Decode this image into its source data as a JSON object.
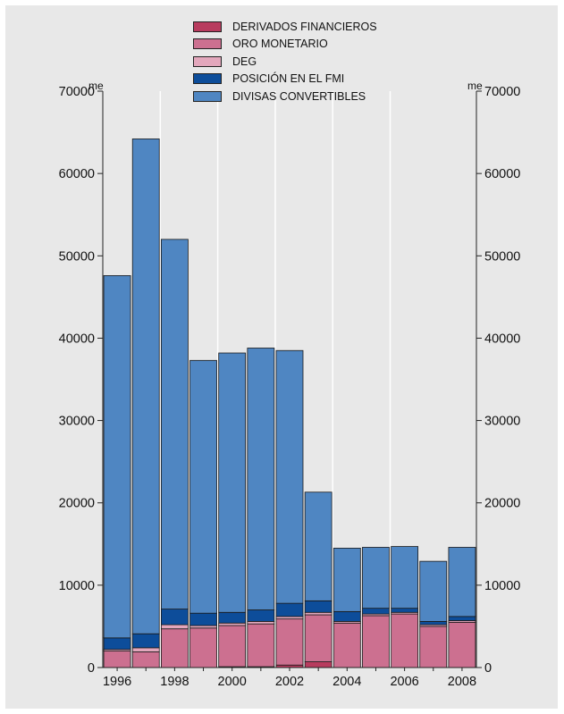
{
  "chart_data": {
    "type": "bar",
    "stacked": true,
    "y_unit_label": "me",
    "ylim": [
      0,
      70000
    ],
    "yticks": [
      0,
      10000,
      20000,
      30000,
      40000,
      50000,
      60000,
      70000
    ],
    "x_tick_labels": [
      "1996",
      "1998",
      "2000",
      "2002",
      "2004",
      "2006",
      "2008"
    ],
    "categories": [
      "1996",
      "1997",
      "1998",
      "1999",
      "2000",
      "2001",
      "2002",
      "2003",
      "2004",
      "2005",
      "2006",
      "2007",
      "2008"
    ],
    "grid": true,
    "series": [
      {
        "name": "DERIVADOS FINANCIEROS",
        "color": "#b83b5e",
        "values": [
          0,
          0,
          0,
          0,
          100,
          100,
          300,
          700,
          0,
          0,
          0,
          0,
          0
        ]
      },
      {
        "name": "ORO MONETARIO",
        "color": "#cc7090",
        "values": [
          2000,
          1900,
          4700,
          4800,
          5000,
          5200,
          5600,
          5700,
          5400,
          6300,
          6500,
          5000,
          5500
        ]
      },
      {
        "name": "DEG",
        "color": "#e3a7bc",
        "values": [
          200,
          500,
          500,
          300,
          300,
          300,
          300,
          300,
          200,
          200,
          200,
          200,
          200
        ]
      },
      {
        "name": "POSICIÓN EN EL FMI",
        "color": "#0d4d9a",
        "values": [
          1400,
          1700,
          1900,
          1500,
          1300,
          1400,
          1600,
          1400,
          1200,
          700,
          500,
          400,
          500
        ]
      },
      {
        "name": "DIVISAS CONVERTIBLES",
        "color": "#4f86c2",
        "values": [
          44000,
          60100,
          44900,
          30700,
          31500,
          31800,
          30700,
          13200,
          7700,
          7400,
          7500,
          7300,
          8400
        ]
      }
    ]
  }
}
